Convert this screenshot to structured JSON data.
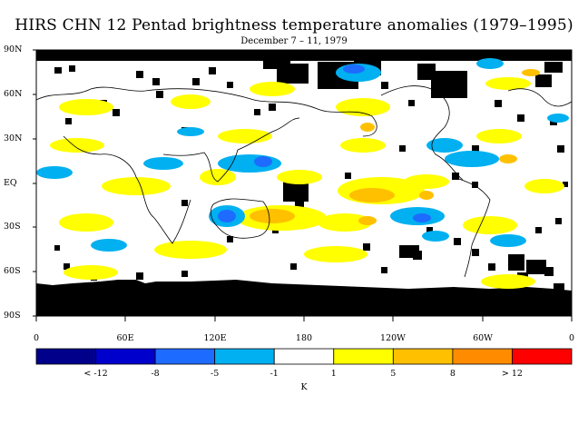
{
  "title": "HIRS CHN 12 Pentad brightness temperature anomalies (1979–1995)",
  "subtitle": "December 7 – 11, 1979",
  "lat_labels": [
    "90N",
    "60N",
    "30N",
    "EQ",
    "30S",
    "60S",
    "90S"
  ],
  "lon_labels": [
    "0",
    "60E",
    "120E",
    "180",
    "120W",
    "60W",
    "0"
  ],
  "colorbar": {
    "colors": [
      "#00008b",
      "#0000cd",
      "#1e6bff",
      "#00b0f0",
      "#ffffff",
      "#ffff00",
      "#ffc000",
      "#ff8c00",
      "#ff0000"
    ],
    "labels": [
      "< -12",
      "-8",
      "-5",
      "-1",
      "1",
      "5",
      "8",
      "> 12"
    ],
    "unit": "K"
  }
}
